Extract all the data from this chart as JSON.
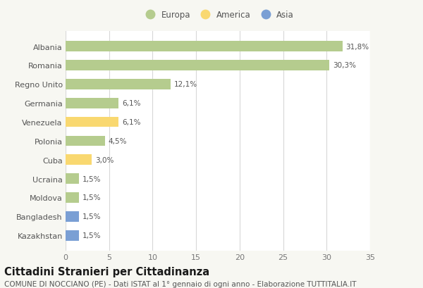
{
  "categories": [
    "Albania",
    "Romania",
    "Regno Unito",
    "Germania",
    "Venezuela",
    "Polonia",
    "Cuba",
    "Ucraina",
    "Moldova",
    "Bangladesh",
    "Kazakhstan"
  ],
  "values": [
    31.8,
    30.3,
    12.1,
    6.1,
    6.1,
    4.5,
    3.0,
    1.5,
    1.5,
    1.5,
    1.5
  ],
  "labels": [
    "31,8%",
    "30,3%",
    "12,1%",
    "6,1%",
    "6,1%",
    "4,5%",
    "3,0%",
    "1,5%",
    "1,5%",
    "1,5%",
    "1,5%"
  ],
  "colors": [
    "#b5cc8e",
    "#b5cc8e",
    "#b5cc8e",
    "#b5cc8e",
    "#f9d870",
    "#b5cc8e",
    "#f9d870",
    "#b5cc8e",
    "#b5cc8e",
    "#7a9fd4",
    "#7a9fd4"
  ],
  "legend_labels": [
    "Europa",
    "America",
    "Asia"
  ],
  "legend_colors": [
    "#b5cc8e",
    "#f9d870",
    "#7a9fd4"
  ],
  "title": "Cittadini Stranieri per Cittadinanza",
  "subtitle": "COMUNE DI NOCCIANO (PE) - Dati ISTAT al 1° gennaio di ogni anno - Elaborazione TUTTITALIA.IT",
  "xlim": [
    0,
    35
  ],
  "xticks": [
    0,
    5,
    10,
    15,
    20,
    25,
    30,
    35
  ],
  "bg_color": "#f7f7f2",
  "plot_bg_color": "#ffffff",
  "grid_color": "#d8d8d8",
  "title_fontsize": 10.5,
  "subtitle_fontsize": 7.5,
  "label_fontsize": 7.5,
  "tick_fontsize": 8,
  "legend_fontsize": 8.5,
  "bar_height": 0.55
}
